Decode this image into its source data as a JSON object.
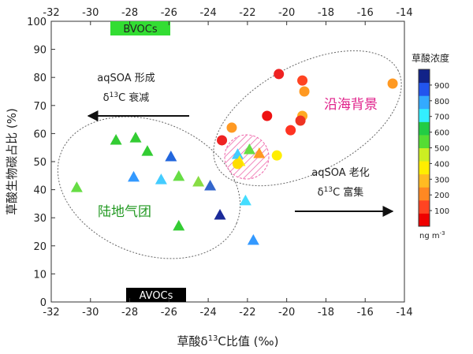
{
  "chart_data": {
    "type": "scatter",
    "xlabel": {
      "pre": "草酸δ",
      "sup": "13",
      "post": "C比值 (‰)"
    },
    "ylabel": "草酸生物碳占比 (%)",
    "xlim": [
      -32,
      -14
    ],
    "xticks": [
      -32,
      -30,
      -28,
      -26,
      -24,
      -22,
      -20,
      -18,
      -16,
      -14
    ],
    "ylim": [
      0,
      100
    ],
    "yticks": [
      0,
      10,
      20,
      30,
      40,
      50,
      60,
      70,
      80,
      90,
      100
    ],
    "series": [
      {
        "marker": "triangle",
        "x": [
          -30.7,
          -28.7,
          -27.7,
          -27.1,
          -27.8,
          -25.9,
          -26.4,
          -25.5,
          -25.5,
          -24.5,
          -23.9,
          -23.4,
          -22.1,
          -21.7,
          -22.5,
          -21.9,
          -21.4,
          -22.4
        ],
        "values": [
          40.7,
          57.6,
          58.4,
          53.6,
          44.4,
          51.7,
          43.5,
          44.7,
          27,
          42.7,
          41.3,
          30.9,
          36,
          21.9,
          52.5,
          54.2,
          52.8,
          50
        ],
        "colors": [
          "#66dd44",
          "#33cc33",
          "#33cc33",
          "#33cc33",
          "#3399ff",
          "#2266dd",
          "#44ccff",
          "#66dd44",
          "#33cc33",
          "#88dd44",
          "#3366cc",
          "#1a2a99",
          "#44ddff",
          "#3399ff",
          "#44ccff",
          "#66dd44",
          "#ff9922",
          "#ffee00"
        ]
      },
      {
        "marker": "circle",
        "x": [
          -23.3,
          -22.8,
          -21.0,
          -20.4,
          -19.2,
          -19.1,
          -19.2,
          -19.3,
          -19.8,
          -20.5,
          -14.6,
          -22.5
        ],
        "values": [
          57.6,
          62.1,
          66.3,
          81.2,
          78.9,
          75,
          66.3,
          64.6,
          61.2,
          52.2,
          77.8,
          49.2
        ],
        "colors": [
          "#ee2222",
          "#ff9922",
          "#ee1111",
          "#ee2222",
          "#ff4422",
          "#ff9922",
          "#ffaa22",
          "#ee3322",
          "#ff3322",
          "#ffee00",
          "#ff9922",
          "#ffdd00"
        ]
      }
    ],
    "annotations": {
      "bvocs": "BVOCs",
      "avocs": "AVOCs",
      "form": "aqSOA 形成",
      "decay": {
        "pre": "δ",
        "sup": "13",
        "post": "C 衰减"
      },
      "aging": "aqSOA 老化",
      "enrich": {
        "pre": "δ",
        "sup": "13",
        "post": "C 富集"
      },
      "coastal": "沿海背景",
      "land": "陆地气团"
    },
    "colorbar": {
      "title": "草酸浓度",
      "lim": [
        0,
        1000
      ],
      "ticks": [
        100,
        200,
        300,
        400,
        500,
        600,
        700,
        800,
        900
      ],
      "colors": [
        "#ee0000",
        "#ff4422",
        "#ff8822",
        "#ffbb22",
        "#ffee00",
        "#ccee22",
        "#55dd33",
        "#22cc44",
        "#33eeff",
        "#33aaff",
        "#2255ee",
        "#112288"
      ],
      "unit": {
        "pre": "ng m",
        "sup": "-3"
      }
    }
  }
}
